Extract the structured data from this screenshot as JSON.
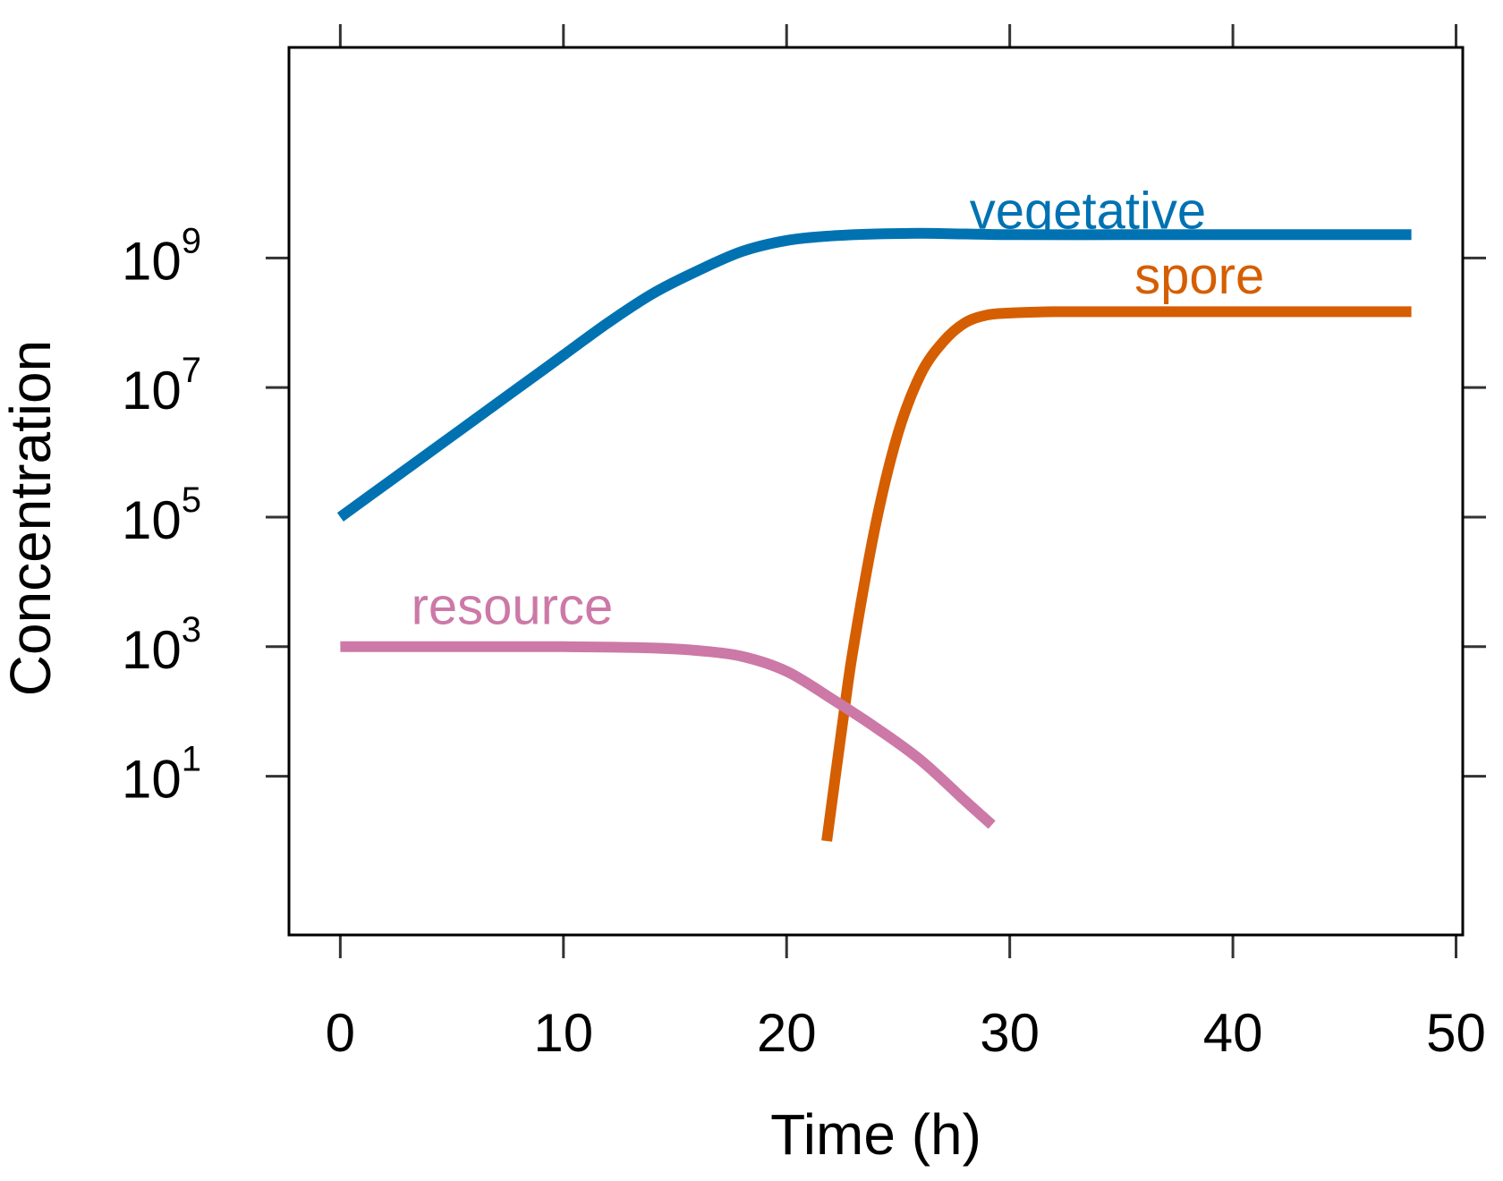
{
  "chart_data": {
    "type": "line",
    "title": "",
    "xlabel": "Time (h)",
    "ylabel": "Concentration",
    "xlim": [
      -2.3,
      50.3
    ],
    "ylim_log10": [
      -1.45,
      12.25
    ],
    "y_scale": "log",
    "grid": false,
    "legend": "inline labels",
    "x_ticks": [
      {
        "value": 0,
        "label": "0"
      },
      {
        "value": 10,
        "label": "10"
      },
      {
        "value": 20,
        "label": "20"
      },
      {
        "value": 30,
        "label": "30"
      },
      {
        "value": 40,
        "label": "40"
      },
      {
        "value": 50,
        "label": "50"
      }
    ],
    "y_ticks": [
      {
        "value": 1,
        "base": "10",
        "exp": "1"
      },
      {
        "value": 3,
        "base": "10",
        "exp": "3"
      },
      {
        "value": 5,
        "base": "10",
        "exp": "5"
      },
      {
        "value": 7,
        "base": "10",
        "exp": "7"
      },
      {
        "value": 9,
        "base": "10",
        "exp": "9"
      }
    ],
    "series": [
      {
        "name": "vegetative",
        "color": "#0072B2",
        "label_at": [
          33.5,
          9.45
        ],
        "x": [
          0,
          2,
          4,
          6,
          8,
          10,
          12,
          14,
          16,
          18,
          20,
          22,
          24,
          26,
          28,
          30,
          35,
          40,
          45,
          48
        ],
        "log10_y": [
          5.0,
          5.5,
          6.0,
          6.5,
          7.0,
          7.5,
          8.0,
          8.45,
          8.8,
          9.1,
          9.27,
          9.34,
          9.37,
          9.38,
          9.37,
          9.36,
          9.36,
          9.36,
          9.36,
          9.36
        ]
      },
      {
        "name": "spore",
        "color": "#D55E00",
        "label_at": [
          38.5,
          8.45
        ],
        "x": [
          21.8,
          22.5,
          23,
          24,
          25,
          26,
          27,
          28,
          29,
          30,
          32,
          35,
          40,
          45,
          48
        ],
        "log10_y": [
          0.0,
          1.8,
          3.0,
          4.9,
          6.3,
          7.2,
          7.7,
          8.0,
          8.12,
          8.15,
          8.17,
          8.17,
          8.17,
          8.17,
          8.17
        ]
      },
      {
        "name": "resource",
        "color": "#CC79A7",
        "label_at": [
          7.7,
          3.35
        ],
        "x": [
          0,
          5,
          10,
          14,
          16,
          18,
          20,
          22,
          24,
          26,
          28,
          29.2
        ],
        "log10_y": [
          3.0,
          3.0,
          3.0,
          2.98,
          2.94,
          2.85,
          2.62,
          2.2,
          1.75,
          1.25,
          0.62,
          0.25
        ]
      }
    ]
  }
}
